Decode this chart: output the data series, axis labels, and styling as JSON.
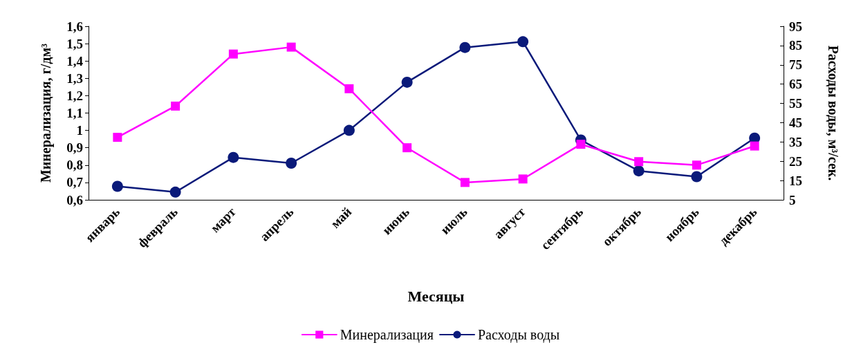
{
  "chart_data": {
    "type": "line",
    "xlabel": "Месяцы",
    "ylabel": "Минерализация, г/дм³",
    "y2label": "Расходы воды, м³/сек.",
    "categories": [
      "январь",
      "февраль",
      "март",
      "апрель",
      "май",
      "июнь",
      "июль",
      "август",
      "сентябрь",
      "октябрь",
      "ноябрь",
      "декабрь"
    ],
    "series": [
      {
        "name": "Минерализация",
        "color": "#ff00ff",
        "marker": "square",
        "values": [
          0.96,
          1.14,
          1.44,
          1.48,
          1.24,
          0.9,
          0.7,
          0.72,
          0.92,
          0.82,
          0.8,
          0.91
        ]
      },
      {
        "name": "Расходы воды",
        "color": "#0a1a7a",
        "marker": "circle",
        "axis": "y2",
        "values": [
          12,
          9,
          27,
          24,
          41,
          66,
          84,
          87,
          36,
          20,
          17,
          37
        ]
      }
    ],
    "ylim": [
      0.6,
      1.6
    ],
    "yticks": [
      {
        "value": 0.6,
        "label": "0,6"
      },
      {
        "value": 0.7,
        "label": "0,7"
      },
      {
        "value": 0.8,
        "label": "0,8"
      },
      {
        "value": 0.9,
        "label": "0,9"
      },
      {
        "value": 1,
        "label": "1"
      },
      {
        "value": 1.1,
        "label": "1,1"
      },
      {
        "value": 1.2,
        "label": "1,2"
      },
      {
        "value": 1.3,
        "label": "1,3"
      },
      {
        "value": 1.4,
        "label": "1,4"
      },
      {
        "value": 1.5,
        "label": "1,5"
      },
      {
        "value": 1.6,
        "label": "1,6"
      }
    ],
    "y2lim": [
      5,
      95
    ],
    "y2ticks": [
      5,
      15,
      25,
      35,
      45,
      55,
      65,
      75,
      85,
      95
    ],
    "grid": false,
    "legend": "bottom",
    "line_style": "solid"
  }
}
